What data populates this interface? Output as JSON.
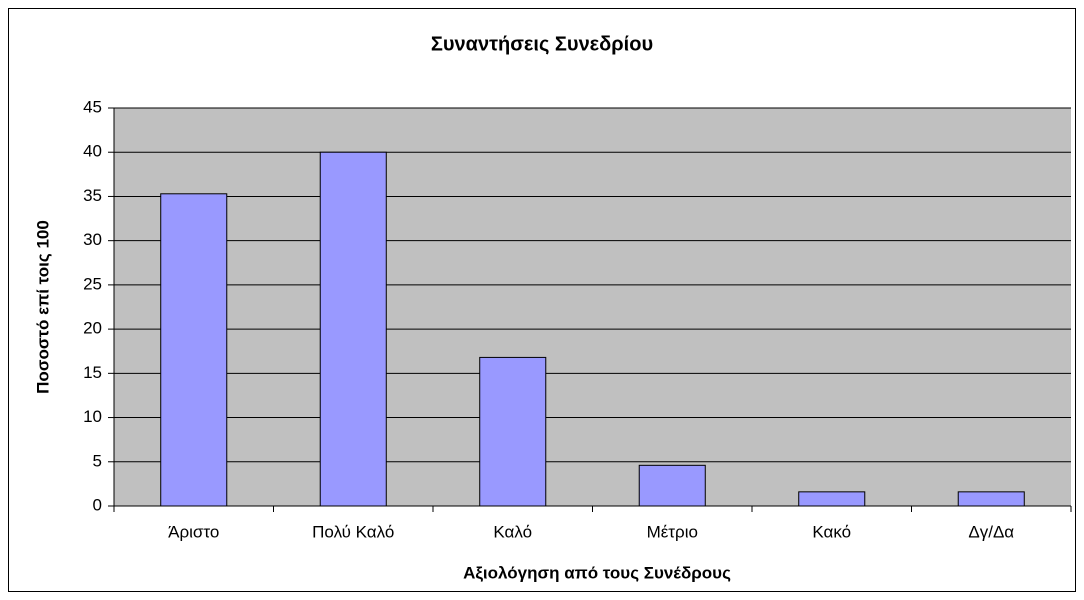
{
  "chart_data": {
    "type": "bar",
    "title": "Συναντήσεις Συνεδρίου",
    "x_label": "Αξιολόγηση από τους Συνέδρους",
    "y_label": "Ποσοστό επί τοις 100",
    "categories": [
      "Άριστο",
      "Πολύ Καλό",
      "Καλό",
      "Μέτριο",
      "Κακό",
      "Δγ/Δα"
    ],
    "values": [
      35.3,
      40,
      16.8,
      4.6,
      1.6,
      1.6
    ],
    "color": "#9999ff",
    "ylim": [
      0,
      45
    ],
    "yticks": [
      0,
      5,
      10,
      15,
      20,
      25,
      30,
      35,
      40,
      45
    ],
    "grid": true
  }
}
